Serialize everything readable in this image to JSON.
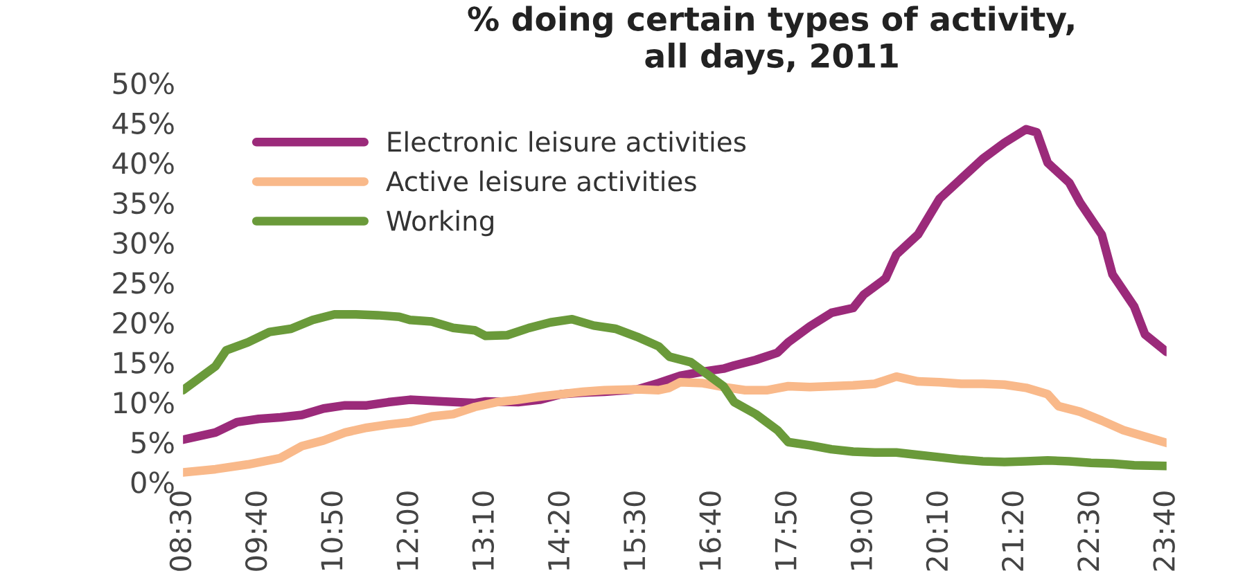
{
  "chart_data": {
    "type": "line",
    "title": "% doing certain types of activity,\nall days, 2011",
    "xlim": [
      8.5,
      23.6667
    ],
    "ylim": [
      0,
      50
    ],
    "xticks": [
      {
        "value": 8.5,
        "label": "08:30"
      },
      {
        "value": 9.6667,
        "label": "09:40"
      },
      {
        "value": 10.8333,
        "label": "10:50"
      },
      {
        "value": 12,
        "label": "12:00"
      },
      {
        "value": 13.1667,
        "label": "13:10"
      },
      {
        "value": 14.3333,
        "label": "14:20"
      },
      {
        "value": 15.5,
        "label": "15:30"
      },
      {
        "value": 16.6667,
        "label": "16:40"
      },
      {
        "value": 17.8333,
        "label": "17:50"
      },
      {
        "value": 19,
        "label": "19:00"
      },
      {
        "value": 20.1667,
        "label": "20:10"
      },
      {
        "value": 21.3333,
        "label": "21:20"
      },
      {
        "value": 22.5,
        "label": "22:30"
      },
      {
        "value": 23.6667,
        "label": "23:40"
      }
    ],
    "yticks": [
      {
        "value": 0,
        "label": "0%"
      },
      {
        "value": 5,
        "label": "5%"
      },
      {
        "value": 10,
        "label": "10%"
      },
      {
        "value": 15,
        "label": "15%"
      },
      {
        "value": 20,
        "label": "20%"
      },
      {
        "value": 25,
        "label": "25%"
      },
      {
        "value": 30,
        "label": "30%"
      },
      {
        "value": 35,
        "label": "35%"
      },
      {
        "value": 40,
        "label": "40%"
      },
      {
        "value": 45,
        "label": "45%"
      },
      {
        "value": 50,
        "label": "50%"
      }
    ],
    "grid": false,
    "legend": "top left",
    "line_style": "solid",
    "series": [
      {
        "name": "Electronic leisure activities",
        "color": "#9b2a7a",
        "x": [
          8.5,
          9.0,
          9.3333,
          9.6667,
          10.0,
          10.3333,
          10.6667,
          11.0,
          11.3333,
          11.6667,
          12.0,
          12.5,
          13.0,
          13.1667,
          13.6667,
          14.0,
          14.3333,
          14.6667,
          15.0,
          15.5,
          15.8333,
          16.1667,
          16.5,
          16.8333,
          17.0,
          17.3333,
          17.6667,
          17.8333,
          18.1667,
          18.5,
          18.8333,
          19.0,
          19.3333,
          19.5,
          19.8333,
          20.1667,
          20.5,
          20.8333,
          21.1667,
          21.5,
          21.6667,
          21.8333,
          22.1667,
          22.3333,
          22.6667,
          22.8333,
          23.1667,
          23.3333,
          23.6667
        ],
        "values": [
          5.3,
          6.2,
          7.5,
          7.9,
          8.1,
          8.4,
          9.2,
          9.6,
          9.6,
          10.0,
          10.3,
          10.1,
          9.9,
          10.1,
          10.0,
          10.3,
          11.0,
          11.2,
          11.3,
          11.6,
          12.4,
          13.3,
          13.8,
          14.2,
          14.6,
          15.3,
          16.2,
          17.5,
          19.5,
          21.2,
          21.8,
          23.5,
          25.5,
          28.5,
          31,
          35.5,
          38,
          40.5,
          42.5,
          44.2,
          43.8,
          40,
          37.5,
          35,
          31,
          26,
          22,
          18.5,
          16.3
        ]
      },
      {
        "name": "Active leisure activities",
        "color": "#f9b98a",
        "x": [
          8.5,
          9.0,
          9.5,
          10.0,
          10.3333,
          10.6667,
          11.0,
          11.3333,
          11.6667,
          12.0,
          12.3333,
          12.6667,
          13.0,
          13.3333,
          13.6667,
          14.0,
          14.3333,
          14.6667,
          15.0,
          15.5,
          15.8333,
          16.0,
          16.1667,
          16.5,
          16.8333,
          17.1667,
          17.5,
          17.8333,
          18.1667,
          18.5,
          18.8333,
          19.1667,
          19.5,
          19.8333,
          20.1667,
          20.5,
          20.8333,
          21.1667,
          21.5,
          21.8333,
          22.0,
          22.3333,
          22.6667,
          23.0,
          23.3333,
          23.6667
        ],
        "values": [
          1.2,
          1.6,
          2.2,
          3.0,
          4.5,
          5.2,
          6.2,
          6.8,
          7.2,
          7.5,
          8.2,
          8.5,
          9.4,
          10.0,
          10.3,
          10.7,
          11.0,
          11.3,
          11.5,
          11.6,
          11.5,
          11.8,
          12.5,
          12.4,
          11.9,
          11.5,
          11.5,
          12.0,
          11.9,
          12.0,
          12.1,
          12.3,
          13.2,
          12.6,
          12.5,
          12.3,
          12.3,
          12.2,
          11.8,
          11.0,
          9.5,
          8.8,
          7.7,
          6.5,
          5.7,
          4.9
        ]
      },
      {
        "name": "Working",
        "color": "#6a9a3a",
        "x": [
          8.5,
          8.6667,
          9.0,
          9.1667,
          9.5,
          9.8333,
          10.1667,
          10.5,
          10.8333,
          11.1667,
          11.5,
          11.8333,
          12.0,
          12.3333,
          12.6667,
          13.0,
          13.1667,
          13.5,
          13.8333,
          14.1667,
          14.5,
          14.8333,
          15.1667,
          15.5,
          15.8333,
          16.0,
          16.3333,
          16.6667,
          16.8333,
          17.0,
          17.3333,
          17.6667,
          17.8333,
          18.1667,
          18.5,
          18.8333,
          19.1667,
          19.5,
          19.8333,
          20.1667,
          20.5,
          20.8333,
          21.1667,
          21.5,
          21.8333,
          22.1667,
          22.5,
          22.8333,
          23.1667,
          23.6667
        ],
        "values": [
          11.5,
          12.5,
          14.5,
          16.5,
          17.5,
          18.8,
          19.2,
          20.3,
          21.0,
          21.0,
          20.9,
          20.7,
          20.3,
          20.1,
          19.3,
          19.0,
          18.3,
          18.4,
          19.3,
          20.0,
          20.4,
          19.6,
          19.2,
          18.2,
          17.0,
          15.7,
          15.0,
          13.0,
          12.0,
          10.0,
          8.5,
          6.5,
          5.0,
          4.6,
          4.1,
          3.8,
          3.7,
          3.7,
          3.4,
          3.1,
          2.8,
          2.6,
          2.5,
          2.6,
          2.7,
          2.6,
          2.4,
          2.3,
          2.1,
          2.0
        ]
      }
    ]
  }
}
